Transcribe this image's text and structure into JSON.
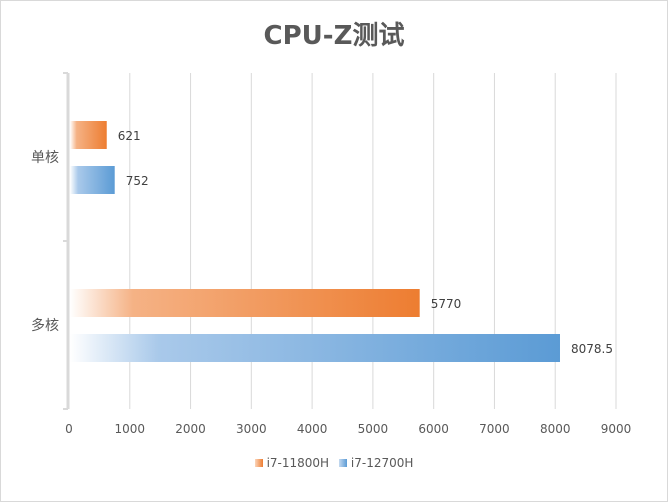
{
  "chart_data": {
    "type": "bar",
    "orientation": "horizontal",
    "title": "CPU-Z测试",
    "categories": [
      "单核",
      "多核"
    ],
    "series": [
      {
        "name": "i7-11800H",
        "values": [
          621,
          5770
        ],
        "color": "#ED7D31"
      },
      {
        "name": "i7-12700H",
        "values": [
          752,
          8078.5
        ],
        "color": "#5B9BD5"
      }
    ],
    "xlim": [
      0,
      9000
    ],
    "xticks": [
      "0",
      "1000",
      "2000",
      "3000",
      "4000",
      "5000",
      "6000",
      "7000",
      "8000",
      "9000"
    ],
    "data_labels": [
      [
        "621",
        "5770"
      ],
      [
        "752",
        "8078.5"
      ]
    ],
    "grid": "vertical",
    "legend": "bottom",
    "bar_fill": "gradient fading to white at the baseline"
  }
}
